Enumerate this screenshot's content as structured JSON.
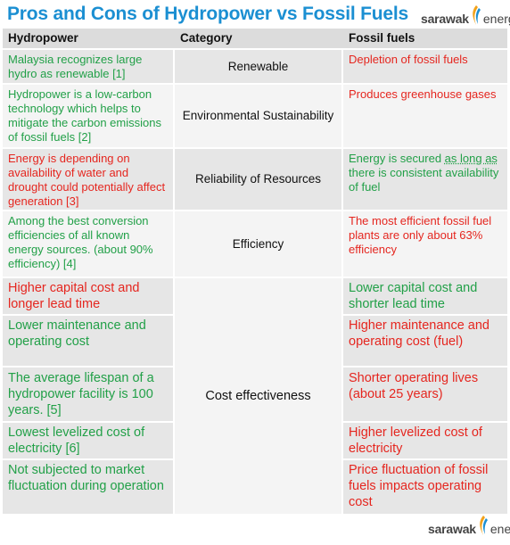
{
  "title": "Pros and Cons of Hydropower vs Fossil Fuels",
  "logo": {
    "word1": "sarawak",
    "word2": "energy"
  },
  "header": {
    "col1": "Hydropower",
    "col2": "Category",
    "col3": "Fossil fuels"
  },
  "rows": [
    {
      "hydro": "Malaysia recognizes large hydro as renewable [1]",
      "category": "Renewable",
      "fossil": "Depletion of fossil fuels"
    },
    {
      "hydro": "Hydropower is a low-carbon technology which helps to mitigate the carbon emissions of fossil fuels [2]",
      "category": "Environmental Sustainability",
      "fossil": "Produces greenhouse gases"
    },
    {
      "hydro": "Energy is depending on availability of water and drought could potentially affect generation [3]",
      "category": "Reliability of Resources",
      "fossil_a": "Energy is secured ",
      "fossil_b": "as long as",
      "fossil_c": " there is consistent availability of fuel"
    },
    {
      "hydro": "Among the best conversion efficiencies of all known energy sources. (about 90% efficiency) [4]",
      "category": "Efficiency",
      "fossil": "The most efficient fossil fuel plants are only about 63% efficiency"
    }
  ],
  "cost": {
    "category": "Cost effectiveness",
    "items": [
      {
        "hydro": "Higher capital cost and longer lead time",
        "fossil": "Lower capital cost and shorter lead time"
      },
      {
        "hydro": "Lower maintenance and operating cost",
        "fossil": "Higher maintenance and operating cost (fuel)"
      },
      {
        "hydro": "The average lifespan of a hydropower facility is 100 years. [5]",
        "fossil": "Shorter operating lives (about 25 years)"
      },
      {
        "hydro": "Lowest levelized cost of electricity [6]",
        "fossil": "Higher levelized cost of electricity"
      },
      {
        "hydro": "Not subjected to market fluctuation during operation",
        "fossil": "Price fluctuation of fossil fuels impacts operating cost"
      }
    ]
  },
  "colors": {
    "title": "#1b8fd2",
    "pro": "#22a048",
    "con": "#e5261f"
  }
}
